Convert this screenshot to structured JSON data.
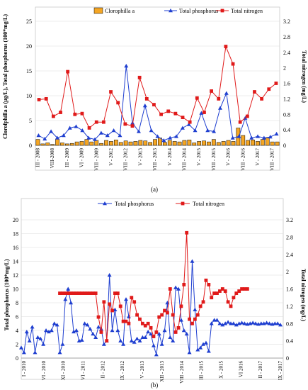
{
  "chart_data": [
    {
      "type": "bar+line",
      "panel_label": "(a)",
      "legend": [
        "Clorophilla a",
        "Total phosphorus",
        "Total nitrogen"
      ],
      "ylabel": "Clorofphilla a (µg/L), Total phosphorus (100*mg/L)",
      "y2label": "Total nitrogen (mg/L)",
      "ylim": [
        0,
        25
      ],
      "yticks": [
        "0",
        "5",
        "10",
        "15",
        "20",
        "25"
      ],
      "y2lim": [
        0,
        3.2
      ],
      "y2ticks": [
        "0",
        "0.4",
        "0.8",
        "1.2",
        "1.6",
        "2",
        "2.4",
        "2.8",
        "3.2"
      ],
      "xticks": [
        "III - 2008",
        "VIII-2008",
        "III - 2009",
        "VI - 2009",
        "VIII - 2009",
        "V - 2012",
        "VIII - 2012",
        "V - 2013",
        "VIII - 2013",
        "V - 2014",
        "VIII - 2014",
        "V - 2015",
        "VIII - 2015",
        "V - 2016",
        "VIII - 2016",
        "V - 2017",
        "VIII - 2017"
      ],
      "tick_positions": [
        0,
        3,
        6,
        9,
        12,
        15,
        18,
        21,
        24,
        27,
        30,
        33,
        36,
        39,
        42,
        45,
        48
      ],
      "n": 50,
      "series": [
        {
          "name": "Clorophilla a",
          "type": "bar",
          "color": "#f5a623",
          "values": [
            1.2,
            0.3,
            0.5,
            0.2,
            1.3,
            0.5,
            0.3,
            0.4,
            0.7,
            0.8,
            1.2,
            0.7,
            1.0,
            0.4,
            1.0,
            0.8,
            1.1,
            0.6,
            0.9,
            0.7,
            0.8,
            1.0,
            0.9,
            0.6,
            1.2,
            1.5,
            0.6,
            1.0,
            0.8,
            0.7,
            1.0,
            1.1,
            0.5,
            0.8,
            0.9,
            0.7,
            1.2,
            0.6,
            0.8,
            1.0,
            0.8,
            3.5,
            2.0,
            1.0,
            1.1,
            0.8,
            1.2,
            1.5,
            0.7,
            0.7
          ]
        },
        {
          "name": "Total phosphorus",
          "type": "line",
          "color": "#1f3fd0",
          "values": [
            2.0,
            1.3,
            2.8,
            1.5,
            2.0,
            3.5,
            3.8,
            3.0,
            1.5,
            1.2,
            2.5,
            2.0,
            3.0,
            2.0,
            16.0,
            4.5,
            2.8,
            8.0,
            3.0,
            1.8,
            1.0,
            1.5,
            1.8,
            3.5,
            4.2,
            3.0,
            6.5,
            3.0,
            2.8,
            7.5,
            10.5,
            1.5,
            1.8,
            5.5,
            1.5,
            1.8,
            1.5,
            1.7,
            2.3
          ]
        },
        {
          "name": "Total nitrogen",
          "type": "line",
          "color": "#e01a1a",
          "axis": "right",
          "values": [
            1.18,
            1.2,
            0.75,
            0.85,
            1.9,
            0.8,
            0.82,
            0.45,
            0.6,
            0.6,
            1.38,
            1.1,
            0.55,
            0.5,
            1.75,
            1.2,
            1.05,
            0.8,
            0.88,
            0.82,
            0.72,
            0.6,
            1.22,
            0.85,
            1.4,
            1.2,
            2.55,
            2.1,
            0.6,
            0.75,
            1.38,
            1.2,
            1.45,
            1.6
          ]
        }
      ]
    },
    {
      "type": "line",
      "panel_label": "(b)",
      "legend": [
        "Total phosphorus",
        "Total nitrogen"
      ],
      "ylabel": "Total phosphorus (100*mg/L)",
      "y2label": "Total nitrogen (mg/L)",
      "ylim": [
        0,
        20
      ],
      "yticks": [
        "0",
        "2",
        "4",
        "6",
        "8",
        "10",
        "12",
        "14",
        "16",
        "18",
        "20"
      ],
      "y2lim": [
        0,
        3.2
      ],
      "y2ticks": [
        "0",
        "0.4",
        "0.8",
        "1.2",
        "1.6",
        "2",
        "2.4",
        "2.8",
        "3.2"
      ],
      "xticks": [
        "I - 2010",
        "VI - 2010",
        "XI - 2010",
        "VI - 2011",
        "II - 2012",
        "IX - 2012",
        "V - 2013",
        "XII - 2013",
        "VIII - 2014",
        "III - 2015",
        "X - 2015",
        "VI 2016",
        "II - 2017",
        "IX - 2017"
      ],
      "xlim": [
        0,
        95
      ],
      "series": [
        {
          "name": "Total phosphorus",
          "color": "#1f3fd0",
          "x": [
            0,
            1,
            2,
            3,
            4,
            5,
            6,
            7,
            8,
            9,
            10,
            11,
            12,
            13,
            14,
            15,
            16,
            17,
            18,
            19,
            20,
            21,
            22,
            23,
            24,
            25,
            26,
            27,
            28,
            29,
            30,
            31,
            32,
            33,
            34,
            35,
            36,
            37,
            38,
            39,
            40,
            41,
            42,
            43,
            44,
            45,
            46,
            47,
            48,
            49,
            50,
            51,
            52,
            53,
            54,
            55,
            56,
            57,
            58,
            59,
            60,
            61,
            62,
            63,
            64,
            65,
            66,
            67,
            68,
            69,
            70,
            71,
            72,
            73,
            74,
            75,
            76,
            77,
            78,
            79,
            80,
            81,
            82,
            83,
            84,
            85,
            86,
            87,
            88,
            89,
            90,
            91,
            92,
            93,
            94
          ],
          "y": [
            1.5,
            0.8,
            3.8,
            2.5,
            4.5,
            0.8,
            3.0,
            2.8,
            2.0,
            4.0,
            3.8,
            4.0,
            5.0,
            4.8,
            0.8,
            2.0,
            8.5,
            10.0,
            8.0,
            3.8,
            4.0,
            2.5,
            2.6,
            5.0,
            4.8,
            4.2,
            3.5,
            3.0,
            4.5,
            4.2,
            2.0,
            2.5,
            12.0,
            4.0,
            7.0,
            4.0,
            2.5,
            2.0,
            8.5,
            6.0,
            2.5,
            2.3,
            2.8,
            2.5,
            3.0,
            3.0,
            3.8,
            3.5,
            1.8,
            0.5,
            3.5,
            2.0,
            4.0,
            8.0,
            3.0,
            2.5,
            10.2,
            10.0,
            5.5,
            4.0,
            3.5,
            0.8,
            14.0,
            7.0,
            1.2,
            1.5,
            2.0,
            2.2,
            1.0,
            5.0,
            5.5,
            5.5,
            5.0,
            4.8,
            5.0,
            5.2,
            5.0,
            5.0,
            4.8,
            5.0,
            5.1,
            5.0,
            4.9,
            5.0,
            5.1,
            5.0,
            4.9,
            5.0,
            5.0,
            5.1,
            5.0,
            4.9,
            5.0,
            5.0,
            4.8
          ]
        },
        {
          "name": "Total nitrogen",
          "color": "#e01a1a",
          "axis": "right",
          "x": [
            14,
            15,
            16,
            17,
            18,
            19,
            20,
            21,
            22,
            23,
            24,
            25,
            26,
            27,
            28,
            29,
            30,
            31,
            32,
            33,
            34,
            35,
            36,
            37,
            38,
            39,
            40,
            41,
            42,
            43,
            44,
            45,
            46,
            47,
            48,
            49,
            50,
            51,
            52,
            53,
            54,
            55,
            56,
            57,
            58,
            59,
            60,
            61,
            62,
            63,
            64,
            65,
            66,
            67,
            68,
            69,
            70,
            71,
            72,
            73,
            74,
            75,
            76,
            77,
            78,
            79,
            80,
            81,
            82
          ],
          "y": [
            1.5,
            1.5,
            1.5,
            1.5,
            1.5,
            1.5,
            1.5,
            1.5,
            1.5,
            1.5,
            1.5,
            1.5,
            1.5,
            1.5,
            0.95,
            0.6,
            1.3,
            0.4,
            1.25,
            1.1,
            1.5,
            1.5,
            1.2,
            0.85,
            0.85,
            0.8,
            1.4,
            1.3,
            1.0,
            0.9,
            0.8,
            0.75,
            0.8,
            0.7,
            0.5,
            0.6,
            0.95,
            1.0,
            1.1,
            1.05,
            1.6,
            1.0,
            0.6,
            0.7,
            1.2,
            1.7,
            2.9,
            0.9,
            0.8,
            0.9,
            1.0,
            1.2,
            1.3,
            1.8,
            1.7,
            1.4,
            1.5,
            1.5,
            1.55,
            1.6,
            1.55,
            1.3,
            1.2,
            1.4,
            1.5,
            1.55,
            1.6,
            1.6,
            1.6
          ]
        }
      ]
    }
  ]
}
